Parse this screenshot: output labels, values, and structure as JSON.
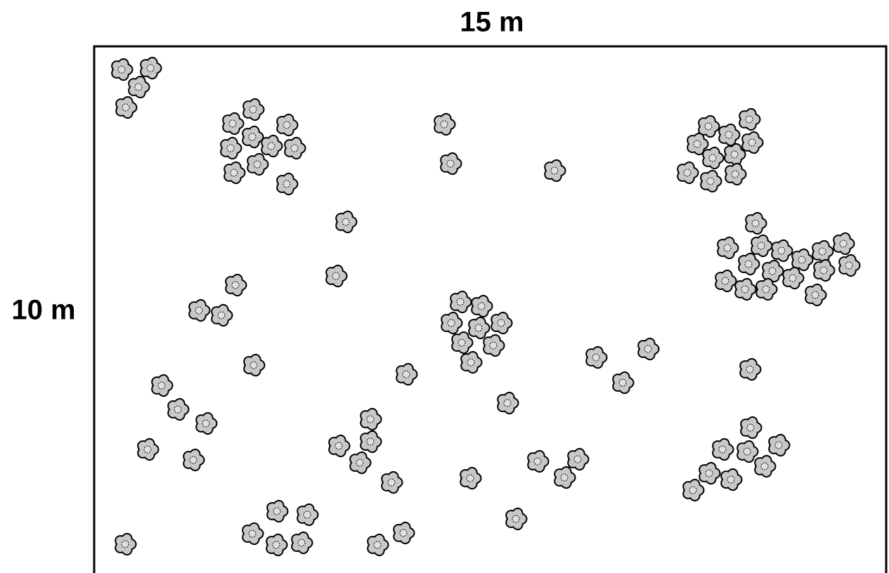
{
  "diagram": {
    "width_label": "15 m",
    "height_label": "10 m"
  }
}
